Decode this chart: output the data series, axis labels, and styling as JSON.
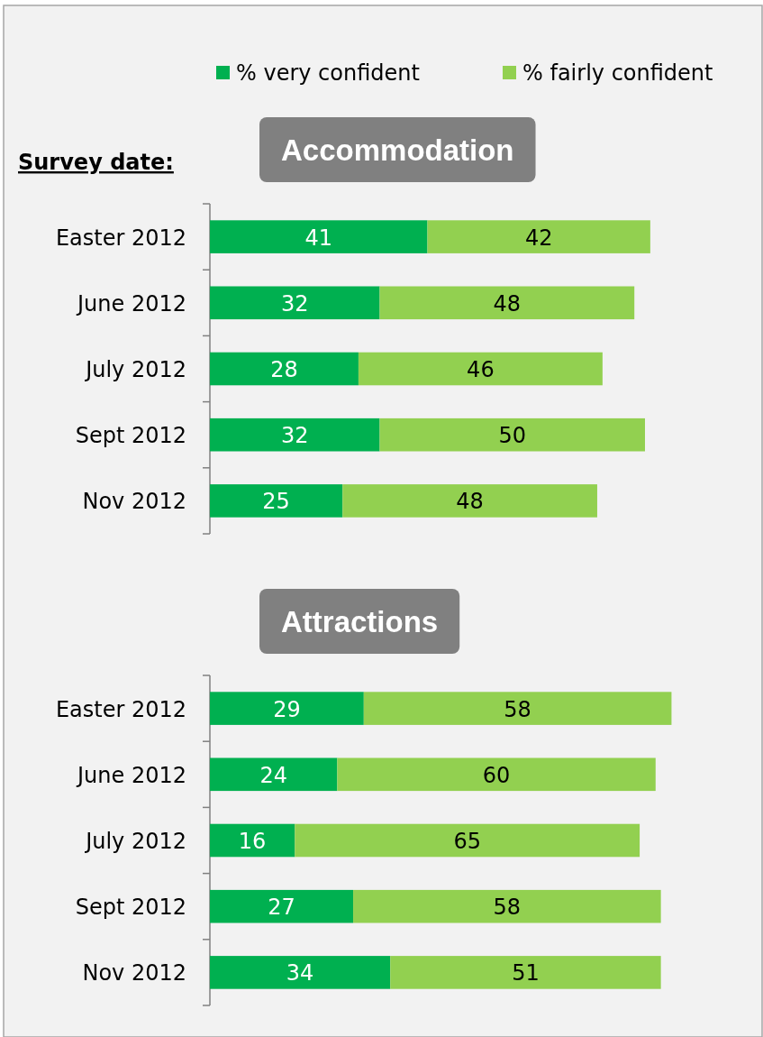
{
  "chart_data": [
    {
      "type": "bar",
      "orientation": "horizontal",
      "stacked": true,
      "title": "Accommodation",
      "ylabel": "Survey date:",
      "categories": [
        "Easter 2012",
        "June 2012",
        "July 2012",
        "Sept 2012",
        "Nov 2012"
      ],
      "series": [
        {
          "name": "% very confident",
          "color": "#00b050",
          "values": [
            41,
            32,
            28,
            32,
            25
          ]
        },
        {
          "name": "% fairly confident",
          "color": "#92d050",
          "values": [
            42,
            48,
            46,
            50,
            48
          ]
        }
      ],
      "data_labels": true,
      "legend": "top right"
    },
    {
      "type": "bar",
      "orientation": "horizontal",
      "stacked": true,
      "title": "Attractions",
      "categories": [
        "Easter 2012",
        "June 2012",
        "July 2012",
        "Sept 2012",
        "Nov 2012"
      ],
      "series": [
        {
          "color": "#00b050",
          "values": [
            29,
            24,
            16,
            27,
            34
          ]
        },
        {
          "color": "#92d050",
          "values": [
            58,
            60,
            65,
            58,
            51
          ]
        }
      ],
      "data_labels": true
    }
  ]
}
